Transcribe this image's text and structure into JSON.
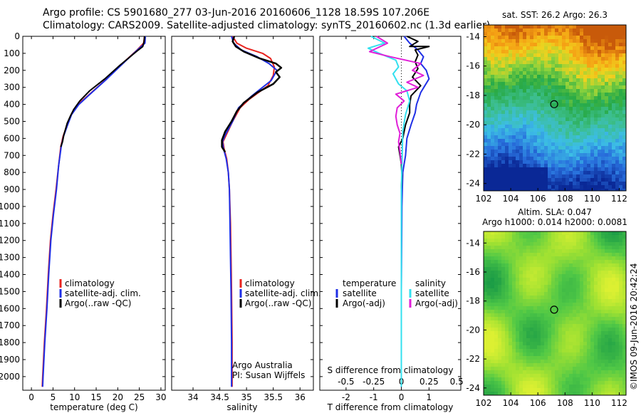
{
  "header": {
    "line1": "Argo profile: CS 5901680_277 03-Jun-2016 20160606_1128 18.59S 107.206E",
    "line2": "Climatology: CARS2009. Satellite-adjusted climatology: synTS_20160602.nc (1.3d earlier)"
  },
  "footer_stamp": "©IMOS 09-Jun-2016 20:42:24",
  "colors": {
    "climatology": "#e8231e",
    "satellite": "#1f2fe6",
    "argo": "#000000",
    "sat_salinity": "#33e0ef",
    "argo_salinity": "#e01fd8"
  },
  "chart_data": [
    {
      "type": "line",
      "id": "temperature",
      "xlabel": "temperature (deg C)",
      "ylabel": "",
      "xlim": [
        -2,
        31
      ],
      "ylim": [
        2080,
        0
      ],
      "xticks": [
        0,
        5,
        10,
        15,
        20,
        25,
        30
      ],
      "yticks": [
        0,
        100,
        200,
        300,
        400,
        500,
        600,
        700,
        800,
        900,
        1000,
        1100,
        1200,
        1300,
        1400,
        1500,
        1600,
        1700,
        1800,
        1900,
        2000
      ],
      "legend": [
        "climatology",
        "satellite-adj. clim.",
        "Argo(..raw -QC)"
      ],
      "series": [
        {
          "name": "climatology",
          "color": "#e8231e",
          "width": 2,
          "points": [
            [
              26.2,
              0
            ],
            [
              26.0,
              40
            ],
            [
              24.5,
              80
            ],
            [
              21.5,
              150
            ],
            [
              17,
              260
            ],
            [
              13.5,
              340
            ],
            [
              10.8,
              400
            ],
            [
              9.2,
              460
            ],
            [
              8.3,
              520
            ],
            [
              7.3,
              590
            ],
            [
              6.8,
              650
            ],
            [
              6.3,
              760
            ],
            [
              5.7,
              900
            ],
            [
              5.0,
              1050
            ],
            [
              4.4,
              1200
            ],
            [
              3.9,
              1400
            ],
            [
              3.5,
              1600
            ],
            [
              3.0,
              1800
            ],
            [
              2.6,
              2000
            ],
            [
              2.5,
              2060
            ]
          ]
        },
        {
          "name": "satellite-adj. clim.",
          "color": "#1f2fe6",
          "width": 2,
          "points": [
            [
              26.4,
              0
            ],
            [
              26.3,
              40
            ],
            [
              24.8,
              75
            ],
            [
              22,
              140
            ],
            [
              17.5,
              250
            ],
            [
              14,
              330
            ],
            [
              11,
              400
            ],
            [
              9.3,
              460
            ],
            [
              8.4,
              520
            ],
            [
              7.4,
              590
            ],
            [
              6.9,
              650
            ],
            [
              6.3,
              760
            ],
            [
              5.8,
              900
            ],
            [
              5.1,
              1050
            ],
            [
              4.5,
              1200
            ],
            [
              4.0,
              1400
            ],
            [
              3.6,
              1600
            ],
            [
              3.1,
              1800
            ],
            [
              2.7,
              2000
            ],
            [
              2.6,
              2060
            ]
          ]
        },
        {
          "name": "Argo(..raw -QC)",
          "color": "#000000",
          "width": 2,
          "points": [
            [
              26.2,
              0
            ],
            [
              26.1,
              30
            ],
            [
              25.8,
              60
            ],
            [
              24.3,
              90
            ],
            [
              20.5,
              170
            ],
            [
              17,
              250
            ],
            [
              13.5,
              320
            ],
            [
              11.2,
              380
            ],
            [
              9.8,
              430
            ],
            [
              9.0,
              470
            ],
            [
              8.3,
              510
            ],
            [
              7.5,
              580
            ],
            [
              7.2,
              620
            ],
            [
              6.8,
              650
            ]
          ]
        }
      ],
      "legend_position": "lower-middle"
    },
    {
      "type": "line",
      "id": "salinity",
      "xlabel": "salinity",
      "xlim": [
        33.6,
        36.25
      ],
      "ylim": [
        2080,
        0
      ],
      "xticks": [
        34,
        34.5,
        35,
        35.5,
        36
      ],
      "xticklabels": [
        "34",
        "34.5",
        "35",
        "35.5",
        "36"
      ],
      "legend": [
        "climatology",
        "satellite-adj. clim.",
        "Argo(..raw -QC)"
      ],
      "annotation": [
        "Argo Australia",
        "PI: Susan Wijffels"
      ],
      "series": [
        {
          "name": "climatology",
          "color": "#e8231e",
          "width": 2,
          "points": [
            [
              34.74,
              0
            ],
            [
              34.82,
              40
            ],
            [
              35.0,
              70
            ],
            [
              35.3,
              100
            ],
            [
              35.45,
              130
            ],
            [
              35.52,
              180
            ],
            [
              35.5,
              230
            ],
            [
              35.4,
              290
            ],
            [
              35.05,
              370
            ],
            [
              34.88,
              420
            ],
            [
              34.74,
              500
            ],
            [
              34.62,
              580
            ],
            [
              34.56,
              620
            ],
            [
              34.58,
              660
            ],
            [
              34.63,
              720
            ],
            [
              34.66,
              800
            ],
            [
              34.68,
              900
            ],
            [
              34.7,
              1100
            ],
            [
              34.71,
              1300
            ],
            [
              34.72,
              1500
            ],
            [
              34.73,
              1800
            ],
            [
              34.73,
              2060
            ]
          ]
        },
        {
          "name": "satellite-adj. clim.",
          "color": "#1f2fe6",
          "width": 2,
          "points": [
            [
              34.72,
              0
            ],
            [
              34.76,
              40
            ],
            [
              34.9,
              80
            ],
            [
              35.2,
              120
            ],
            [
              35.42,
              160
            ],
            [
              35.57,
              200
            ],
            [
              35.46,
              260
            ],
            [
              35.1,
              350
            ],
            [
              34.85,
              420
            ],
            [
              34.74,
              500
            ],
            [
              34.6,
              580
            ],
            [
              34.55,
              620
            ],
            [
              34.57,
              660
            ],
            [
              34.62,
              720
            ],
            [
              34.66,
              800
            ],
            [
              34.68,
              900
            ],
            [
              34.69,
              1100
            ],
            [
              34.7,
              1300
            ],
            [
              34.71,
              1500
            ],
            [
              34.72,
              1800
            ],
            [
              34.72,
              2060
            ]
          ]
        },
        {
          "name": "Argo(..raw -QC)",
          "color": "#000000",
          "width": 2.5,
          "points": [
            [
              34.77,
              0
            ],
            [
              34.74,
              30
            ],
            [
              34.8,
              60
            ],
            [
              34.95,
              90
            ],
            [
              35.25,
              130
            ],
            [
              35.55,
              160
            ],
            [
              35.65,
              185
            ],
            [
              35.55,
              210
            ],
            [
              35.62,
              240
            ],
            [
              35.5,
              280
            ],
            [
              35.2,
              330
            ],
            [
              34.95,
              390
            ],
            [
              34.82,
              440
            ],
            [
              34.72,
              500
            ],
            [
              34.6,
              560
            ],
            [
              34.54,
              610
            ],
            [
              34.54,
              650
            ],
            [
              34.6,
              680
            ]
          ]
        }
      ],
      "legend_position": "lower-middle"
    },
    {
      "type": "line",
      "id": "difference",
      "xlabel": "T difference from climatology",
      "top_label": "S difference from climatology",
      "xlim": [
        -2.95,
        2.15
      ],
      "ylim": [
        2080,
        0
      ],
      "xticks": [
        -2,
        -1,
        0,
        1
      ],
      "xticklabels": [
        "-2",
        "-1",
        "0",
        "1"
      ],
      "s_ticks": [
        -0.5,
        -0.25,
        0,
        0.25,
        0.5
      ],
      "s_ticklabels": [
        "-0.5",
        "-0.25",
        "0",
        "0.25",
        "0.5"
      ],
      "legend_groups": [
        {
          "heading": "temperature",
          "items": [
            "satellite",
            "Argo(-adj)"
          ]
        },
        {
          "heading": "salinity",
          "items": [
            "satellite",
            "Argo(-adj)"
          ]
        }
      ],
      "series": [
        {
          "name": "satellite",
          "group": "temperature",
          "color": "#1f2fe6",
          "width": 2,
          "points": [
            [
              0.1,
              0
            ],
            [
              0.3,
              40
            ],
            [
              0.6,
              80
            ],
            [
              0.8,
              120
            ],
            [
              0.7,
              160
            ],
            [
              0.9,
              200
            ],
            [
              1.0,
              250
            ],
            [
              0.7,
              330
            ],
            [
              0.55,
              400
            ],
            [
              0.5,
              450
            ],
            [
              0.35,
              520
            ],
            [
              0.2,
              600
            ],
            [
              0.15,
              700
            ],
            [
              0.05,
              800
            ],
            [
              0.02,
              1000
            ],
            [
              0,
              1500
            ],
            [
              0,
              2060
            ]
          ]
        },
        {
          "name": "Argo(-adj)",
          "group": "temperature",
          "color": "#000000",
          "width": 2,
          "points": [
            [
              0.2,
              0
            ],
            [
              0.6,
              30
            ],
            [
              0.3,
              60
            ],
            [
              1.0,
              60
            ],
            [
              0.5,
              80
            ],
            [
              0.6,
              110
            ],
            [
              0.5,
              150
            ],
            [
              0.6,
              190
            ],
            [
              0.4,
              240
            ],
            [
              0.7,
              290
            ],
            [
              0.35,
              350
            ],
            [
              0.3,
              400
            ],
            [
              0.3,
              450
            ],
            [
              0.15,
              520
            ],
            [
              0.1,
              560
            ],
            [
              0.05,
              600
            ],
            [
              -0.1,
              650
            ],
            [
              -0.05,
              700
            ],
            [
              0,
              750
            ],
            [
              0.02,
              820
            ],
            [
              0,
              900
            ],
            [
              0,
              1400
            ],
            [
              0,
              1800
            ]
          ]
        },
        {
          "name": "satellite",
          "group": "salinity",
          "color": "#33e0ef",
          "width": 2,
          "points": [
            [
              -1.1,
              0
            ],
            [
              -0.6,
              40
            ],
            [
              -1.2,
              70
            ],
            [
              -0.8,
              100
            ],
            [
              -0.2,
              140
            ],
            [
              -0.1,
              180
            ],
            [
              -0.3,
              220
            ],
            [
              -0.1,
              280
            ],
            [
              0.2,
              320
            ],
            [
              0.3,
              380
            ],
            [
              0.15,
              460
            ],
            [
              0.05,
              560
            ],
            [
              0.03,
              700
            ],
            [
              0,
              900
            ],
            [
              0,
              1200
            ],
            [
              0,
              1600
            ],
            [
              0,
              2060
            ]
          ]
        },
        {
          "name": "Argo(-adj)",
          "group": "salinity",
          "color": "#e01fd8",
          "width": 2,
          "points": [
            [
              -0.9,
              0
            ],
            [
              -0.5,
              40
            ],
            [
              -1.15,
              90
            ],
            [
              -0.4,
              120
            ],
            [
              0.7,
              160
            ],
            [
              0.4,
              200
            ],
            [
              0.8,
              230
            ],
            [
              0.2,
              270
            ],
            [
              0.6,
              300
            ],
            [
              -0.2,
              340
            ],
            [
              0.1,
              380
            ],
            [
              -0.15,
              420
            ],
            [
              -0.2,
              470
            ],
            [
              -0.15,
              520
            ],
            [
              -0.05,
              570
            ],
            [
              -0.1,
              620
            ],
            [
              -0.05,
              680
            ],
            [
              0,
              750
            ]
          ]
        }
      ],
      "legend_position": "lower-middle"
    },
    {
      "type": "heatmap",
      "id": "sst_map",
      "title": "sat. SST: 26.2  Argo: 26.3",
      "xlim": [
        102,
        112.5
      ],
      "ylim": [
        -24.5,
        -13.2
      ],
      "xticks": [
        102,
        104,
        106,
        108,
        110,
        112
      ],
      "yticks": [
        -14,
        -16,
        -18,
        -20,
        -22,
        -24
      ],
      "marker": {
        "lon": 107.2,
        "lat": -18.6
      }
    },
    {
      "type": "heatmap",
      "id": "sla_map",
      "title": "Altim. SLA: 0.047",
      "subtitle": "Argo h1000: 0.014 h2000: 0.0081",
      "xlim": [
        102,
        112.5
      ],
      "ylim": [
        -24.5,
        -13.2
      ],
      "xticks": [
        102,
        104,
        106,
        108,
        110,
        112
      ],
      "yticks": [
        -14,
        -16,
        -18,
        -20,
        -22,
        -24
      ],
      "marker": {
        "lon": 107.2,
        "lat": -18.6
      }
    }
  ]
}
